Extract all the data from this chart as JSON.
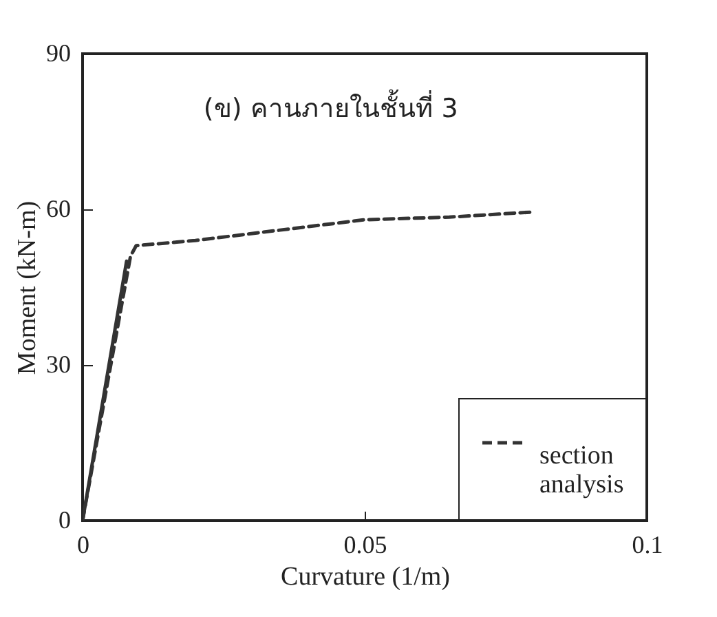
{
  "chart_data": {
    "type": "line",
    "xlabel": "Curvature (1/m)",
    "ylabel": "Moment (kN-m)",
    "annotations": [
      "(ข) คานภายในชั้นที่ 3"
    ],
    "series": [
      {
        "color": "#333333",
        "line_style": "solid",
        "x": [
          0,
          0.0078
        ],
        "values": [
          0,
          50
        ]
      },
      {
        "name": "section analysis",
        "color": "#333333",
        "line_style": "dashed",
        "x": [
          0,
          0.0085,
          0.0095,
          0.02,
          0.035,
          0.05,
          0.065,
          0.08
        ],
        "values": [
          0,
          51,
          53,
          54,
          56,
          58,
          58.5,
          59.5
        ]
      }
    ],
    "xlim": [
      0,
      0.1
    ],
    "xticks": [
      0,
      0.05,
      0.1
    ],
    "ylim": [
      0,
      90
    ],
    "yticks": [
      0,
      30,
      60,
      90
    ],
    "grid": false,
    "legend": "bottom right",
    "marker": "none"
  }
}
